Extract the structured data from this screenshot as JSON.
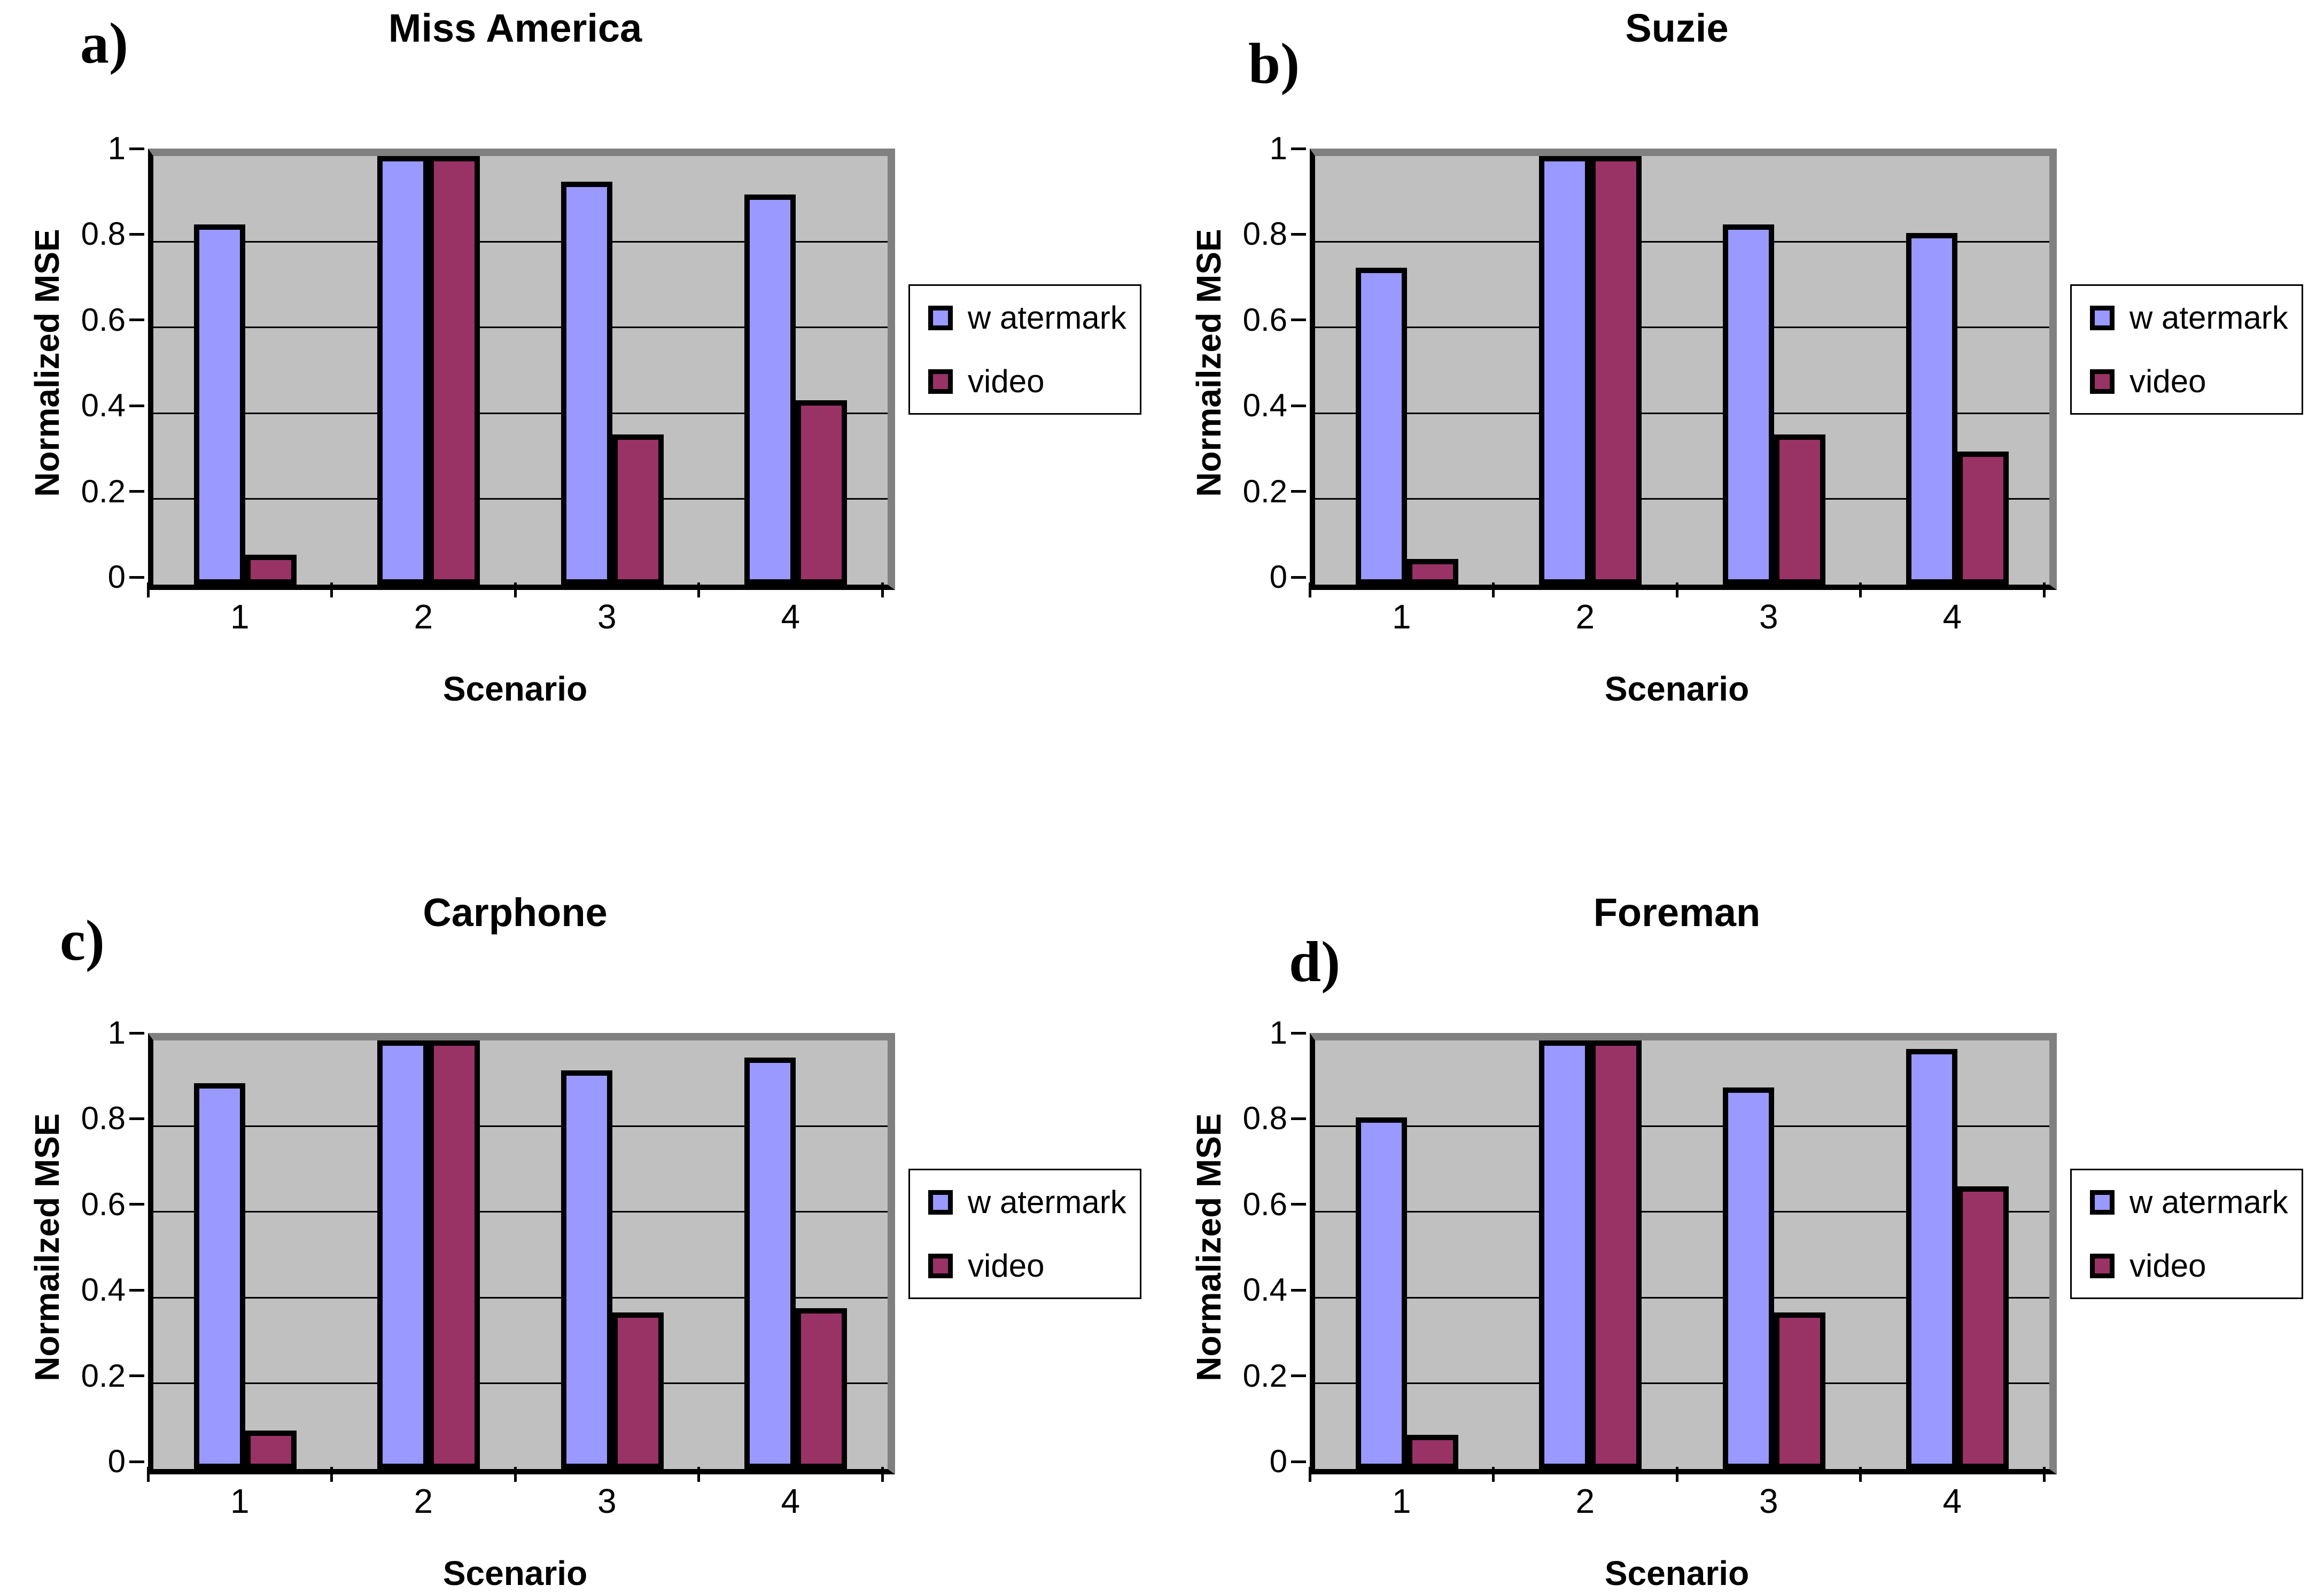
{
  "colors": {
    "watermark": "#9999FF",
    "video": "#993366",
    "plot_background": "#C0C0C0",
    "plot_border": "#808080",
    "axis": "#000000"
  },
  "legend": {
    "items": [
      {
        "label": "w atermark",
        "color": "#9999FF"
      },
      {
        "label": "video",
        "color": "#993366"
      }
    ]
  },
  "chart_data": [
    {
      "type": "bar",
      "panel": "a)",
      "title": "Miss America",
      "xlabel": "Scenario",
      "ylabel": "Normalized MSE",
      "categories": [
        "1",
        "2",
        "3",
        "4"
      ],
      "series": [
        {
          "name": "w atermark",
          "values": [
            0.84,
            1.0,
            0.94,
            0.91
          ]
        },
        {
          "name": "video",
          "values": [
            0.07,
            1.0,
            0.35,
            0.43
          ]
        }
      ],
      "ylim": [
        0,
        1
      ],
      "yticks": [
        1,
        0.8,
        0.6,
        0.4,
        0.2,
        0
      ],
      "ytick_labels": [
        "1",
        "0.8",
        "0.6",
        "0.4",
        "0.2",
        "0"
      ],
      "grid": true,
      "legend_position": "right"
    },
    {
      "type": "bar",
      "panel": "b)",
      "title": "Suzie",
      "xlabel": "Scenario",
      "ylabel": "Normailzed MSE",
      "categories": [
        "1",
        "2",
        "3",
        "4"
      ],
      "series": [
        {
          "name": "w atermark",
          "values": [
            0.74,
            1.0,
            0.84,
            0.82
          ]
        },
        {
          "name": "video",
          "values": [
            0.06,
            1.0,
            0.35,
            0.31
          ]
        }
      ],
      "ylim": [
        0,
        1
      ],
      "yticks": [
        1,
        0.8,
        0.6,
        0.4,
        0.2,
        0
      ],
      "ytick_labels": [
        "1",
        "0.8",
        "0.6",
        "0.4",
        "0.2",
        "0"
      ],
      "grid": true,
      "legend_position": "right"
    },
    {
      "type": "bar",
      "panel": "c)",
      "title": "Carphone",
      "xlabel": "Scenario",
      "ylabel": "Normailzed MSE",
      "categories": [
        "1",
        "2",
        "3",
        "4"
      ],
      "series": [
        {
          "name": "w atermark",
          "values": [
            0.9,
            1.0,
            0.93,
            0.96
          ]
        },
        {
          "name": "video",
          "values": [
            0.09,
            1.0,
            0.365,
            0.375
          ]
        }
      ],
      "ylim": [
        0,
        1
      ],
      "yticks": [
        1,
        0.8,
        0.6,
        0.4,
        0.2,
        0
      ],
      "ytick_labels": [
        "1",
        "0.8",
        "0.6",
        "0.4",
        "0.2",
        "0"
      ],
      "grid": true,
      "legend_position": "right"
    },
    {
      "type": "bar",
      "panel": "d)",
      "title": "Foreman",
      "xlabel": "Scenario",
      "ylabel": "Normalized MSE",
      "categories": [
        "1",
        "2",
        "3",
        "4"
      ],
      "series": [
        {
          "name": "w atermark",
          "values": [
            0.82,
            1.0,
            0.89,
            0.98
          ]
        },
        {
          "name": "video",
          "values": [
            0.08,
            1.0,
            0.365,
            0.66
          ]
        }
      ],
      "ylim": [
        0,
        1
      ],
      "yticks": [
        1,
        0.8,
        0.6,
        0.4,
        0.2,
        0
      ],
      "ytick_labels": [
        "1",
        "0.8",
        "0.6",
        "0.4",
        "0.2",
        "0"
      ],
      "grid": true,
      "legend_position": "right"
    }
  ]
}
